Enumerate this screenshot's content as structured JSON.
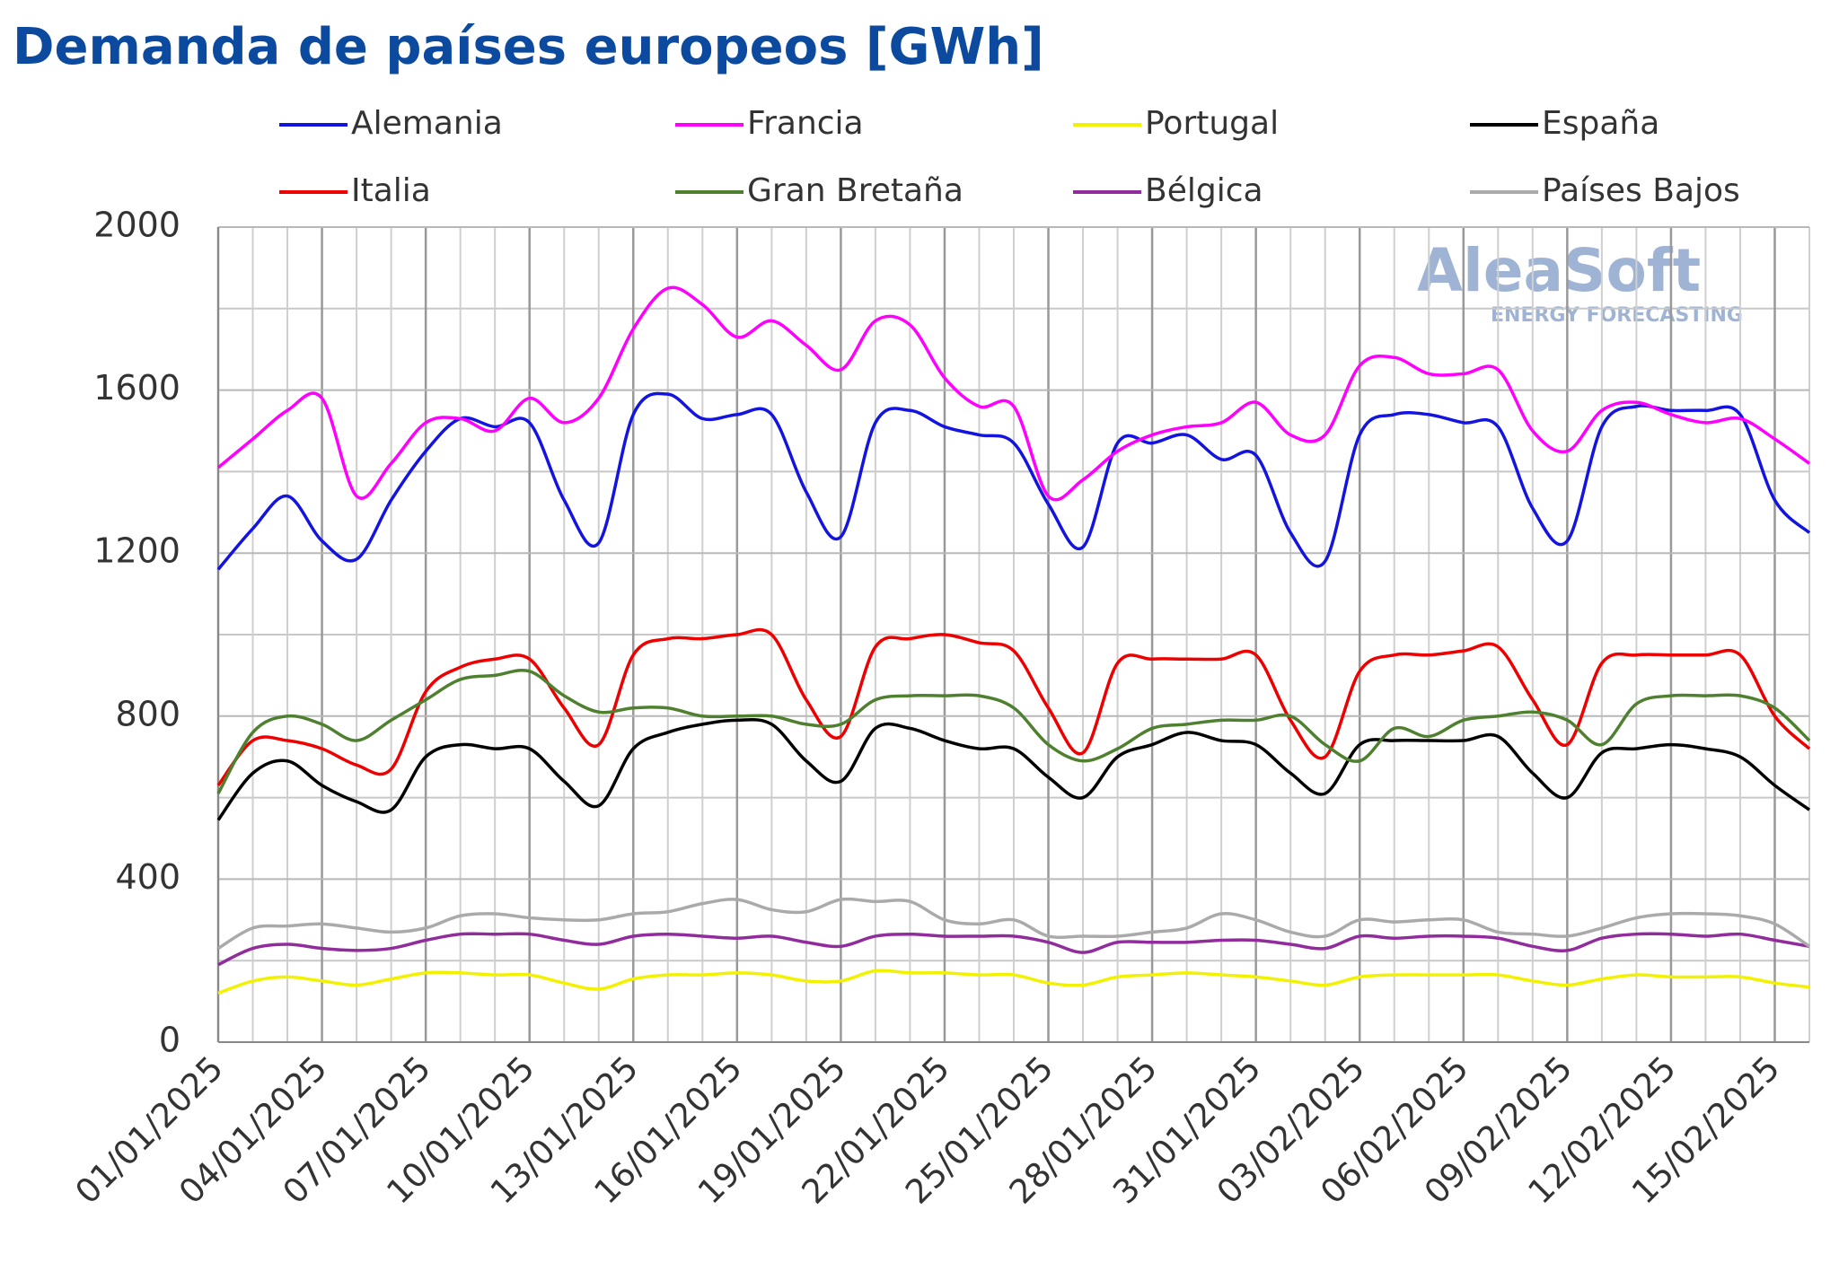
{
  "chart_data": {
    "type": "line",
    "title": "Demanda de países europeos [GWh]",
    "watermark": {
      "name": "AleaSoft",
      "tagline": "ENERGY FORECASTING"
    },
    "categories": [
      "01/01/2025",
      null,
      null,
      "04/01/2025",
      null,
      null,
      "07/01/2025",
      null,
      null,
      "10/01/2025",
      null,
      null,
      "13/01/2025",
      null,
      null,
      "16/01/2025",
      null,
      null,
      "19/01/2025",
      null,
      null,
      "22/01/2025",
      null,
      null,
      "25/01/2025",
      null,
      null,
      "28/01/2025",
      null,
      null,
      "31/01/2025",
      null,
      null,
      "03/02/2025",
      null,
      null,
      "06/02/2025",
      null,
      null,
      "09/02/2025",
      null,
      null,
      "12/02/2025",
      null,
      null,
      "15/02/2025",
      null
    ],
    "ylim": [
      0,
      2000
    ],
    "yticks": [
      0,
      400,
      800,
      1200,
      1600,
      2000
    ],
    "minor_yticks": [
      200,
      600,
      1000,
      1400,
      1800
    ],
    "grid": true,
    "series": [
      {
        "name": "Alemania",
        "color": "#1414e0",
        "values": [
          1160,
          1260,
          1340,
          1230,
          1185,
          1330,
          1450,
          1530,
          1510,
          1520,
          1330,
          1225,
          1540,
          1590,
          1530,
          1540,
          1540,
          1350,
          1240,
          1520,
          1550,
          1510,
          1490,
          1470,
          1320,
          1215,
          1470,
          1470,
          1490,
          1430,
          1440,
          1250,
          1180,
          1490,
          1540,
          1540,
          1520,
          1510,
          1310,
          1230,
          1510,
          1560,
          1550,
          1550,
          1540,
          1330,
          1250
        ]
      },
      {
        "name": "Francia",
        "color": "#ff00ff",
        "values": [
          1410,
          1480,
          1550,
          1580,
          1340,
          1420,
          1520,
          1530,
          1500,
          1580,
          1520,
          1580,
          1750,
          1850,
          1810,
          1730,
          1770,
          1710,
          1650,
          1770,
          1760,
          1630,
          1560,
          1560,
          1340,
          1380,
          1450,
          1490,
          1510,
          1520,
          1570,
          1490,
          1490,
          1660,
          1680,
          1640,
          1640,
          1650,
          1500,
          1450,
          1550,
          1570,
          1540,
          1520,
          1530,
          1480,
          1420
        ]
      },
      {
        "name": "Portugal",
        "color": "#f2f200",
        "values": [
          120,
          150,
          160,
          150,
          140,
          155,
          170,
          170,
          165,
          165,
          145,
          130,
          155,
          165,
          165,
          170,
          165,
          150,
          150,
          175,
          170,
          170,
          165,
          165,
          145,
          140,
          160,
          165,
          170,
          165,
          160,
          150,
          140,
          160,
          165,
          165,
          165,
          165,
          150,
          140,
          155,
          165,
          160,
          160,
          160,
          145,
          135
        ]
      },
      {
        "name": "España",
        "color": "#000000",
        "values": [
          545,
          660,
          690,
          630,
          590,
          570,
          700,
          730,
          720,
          720,
          640,
          580,
          720,
          760,
          780,
          790,
          780,
          690,
          640,
          770,
          770,
          740,
          720,
          720,
          650,
          600,
          700,
          730,
          760,
          740,
          730,
          660,
          610,
          730,
          740,
          740,
          740,
          750,
          660,
          600,
          710,
          720,
          730,
          720,
          700,
          630,
          570
        ]
      },
      {
        "name": "Italia",
        "color": "#ee0000",
        "values": [
          630,
          740,
          740,
          720,
          680,
          670,
          860,
          920,
          940,
          940,
          820,
          730,
          950,
          990,
          990,
          1000,
          1000,
          840,
          750,
          970,
          990,
          1000,
          980,
          960,
          820,
          710,
          930,
          940,
          940,
          940,
          950,
          790,
          700,
          910,
          950,
          950,
          960,
          970,
          840,
          730,
          930,
          950,
          950,
          950,
          950,
          800,
          720
        ]
      },
      {
        "name": "Gran Bretaña",
        "color": "#4f8030",
        "values": [
          610,
          760,
          800,
          780,
          740,
          790,
          840,
          890,
          900,
          910,
          850,
          810,
          820,
          820,
          800,
          800,
          800,
          780,
          780,
          840,
          850,
          850,
          850,
          820,
          730,
          690,
          720,
          770,
          780,
          790,
          790,
          800,
          730,
          690,
          770,
          750,
          790,
          800,
          810,
          790,
          730,
          830,
          850,
          850,
          850,
          820,
          740
        ]
      },
      {
        "name": "Bélgica",
        "color": "#902c9c",
        "values": [
          190,
          230,
          240,
          230,
          225,
          230,
          250,
          265,
          265,
          265,
          250,
          240,
          260,
          265,
          260,
          255,
          260,
          245,
          235,
          260,
          265,
          260,
          260,
          260,
          245,
          220,
          245,
          245,
          245,
          250,
          250,
          240,
          230,
          260,
          255,
          260,
          260,
          255,
          235,
          225,
          255,
          265,
          265,
          260,
          265,
          250,
          235
        ]
      },
      {
        "name": "Países Bajos",
        "color": "#aaaaaa",
        "values": [
          230,
          280,
          285,
          290,
          280,
          270,
          280,
          310,
          315,
          305,
          300,
          300,
          315,
          320,
          340,
          350,
          325,
          320,
          350,
          345,
          345,
          300,
          290,
          300,
          260,
          260,
          260,
          270,
          280,
          315,
          300,
          270,
          260,
          300,
          295,
          300,
          300,
          270,
          265,
          260,
          280,
          305,
          315,
          315,
          310,
          290,
          235
        ]
      }
    ]
  }
}
